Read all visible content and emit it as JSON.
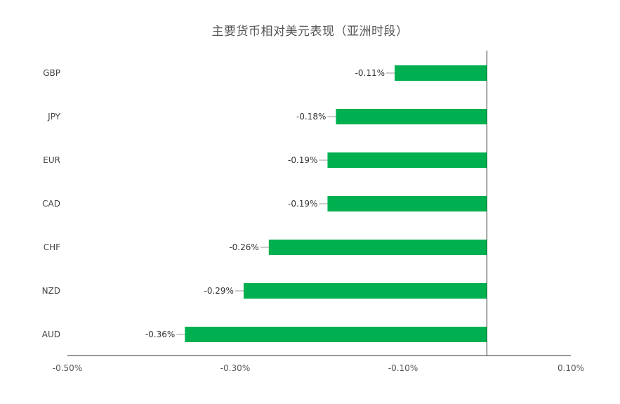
{
  "chart_data": {
    "type": "bar",
    "orientation": "horizontal",
    "title": "主要货币相对美元表现（亚洲时段）",
    "categories": [
      "GBP",
      "JPY",
      "EUR",
      "CAD",
      "CHF",
      "NZD",
      "AUD"
    ],
    "values": [
      -0.11,
      -0.18,
      -0.19,
      -0.19,
      -0.26,
      -0.29,
      -0.36
    ],
    "value_labels": [
      "-0.11%",
      "-0.18%",
      "-0.19%",
      "-0.19%",
      "-0.26%",
      "-0.29%",
      "-0.36%"
    ],
    "xlim": [
      -0.5,
      0.1
    ],
    "xticks": [
      -0.5,
      -0.3,
      -0.1,
      0.1
    ],
    "xtick_labels": [
      "-0.50%",
      "-0.30%",
      "-0.10%",
      "0.10%"
    ],
    "bar_color": "#00b050",
    "grid": false,
    "legend": "none"
  }
}
